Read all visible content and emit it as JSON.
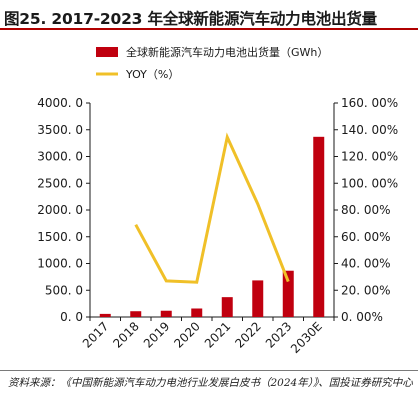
{
  "figure": {
    "title": "图25. 2017-2023 年全球新能源汽车动力电池出货量",
    "source": "资料来源：《中国新能源汽车动力电池行业发展白皮书（2024年）》、国投证券研究中心"
  },
  "colors": {
    "bar": "#c0000f",
    "line": "#f0c028",
    "title_rule": "#b00000"
  },
  "chart_data": {
    "type": "bar",
    "categories": [
      "2017",
      "2018",
      "2019",
      "2020",
      "2021",
      "2022",
      "2023",
      "2030E"
    ],
    "series": [
      {
        "name": "全球新能源汽车动力电池出货量（GWh）",
        "type": "bar",
        "axis": "left",
        "values": [
          58,
          108,
          117,
          159,
          371,
          684,
          865,
          3368
        ]
      },
      {
        "name": "YOY（%）",
        "type": "line",
        "axis": "right",
        "values": [
          null,
          69.0,
          27.0,
          26.0,
          134.5,
          84.5,
          26.5,
          null
        ]
      }
    ],
    "y_left": {
      "lim": [
        0,
        4000
      ],
      "ticks": [
        0,
        500,
        1000,
        1500,
        2000,
        2500,
        3000,
        3500,
        4000
      ],
      "tick_labels": [
        "0. 0",
        "500. 0",
        "1000. 0",
        "1500. 0",
        "2000. 0",
        "2500. 0",
        "3000. 0",
        "3500. 0",
        "4000. 0"
      ]
    },
    "y_right": {
      "lim": [
        0,
        160
      ],
      "ticks": [
        0,
        20,
        40,
        60,
        80,
        100,
        120,
        140,
        160
      ],
      "tick_labels": [
        "0. 00%",
        "20. 00%",
        "40. 00%",
        "60. 00%",
        "80. 00%",
        "100. 00%",
        "120. 00%",
        "140. 00%",
        "160. 00%"
      ]
    },
    "legend_position": "top-left",
    "grid": false
  }
}
